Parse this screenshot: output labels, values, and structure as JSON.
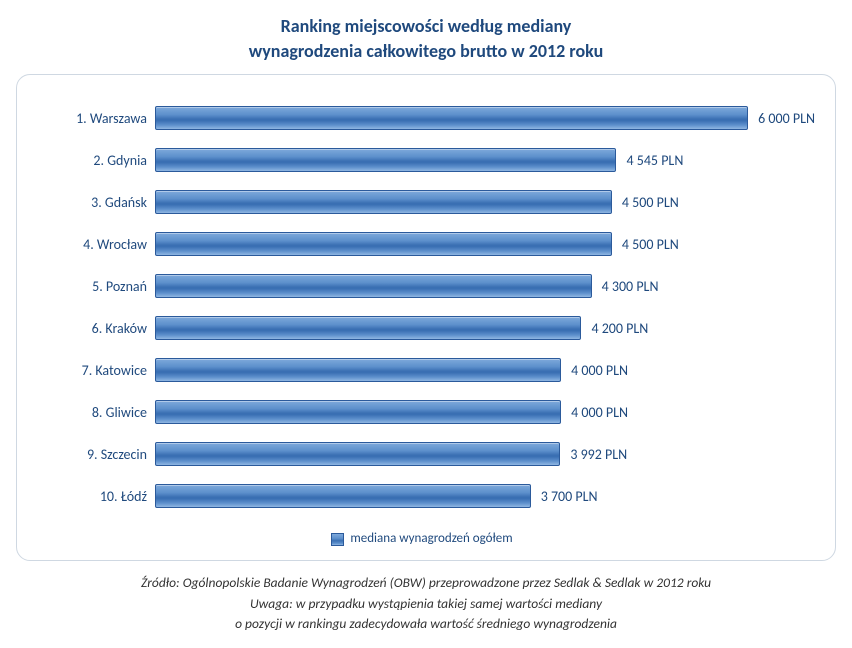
{
  "chart": {
    "type": "bar-horizontal",
    "title_lines": [
      "Ranking miejscowości według mediany",
      "wynagrodzenia całkowitego brutto w 2012 roku"
    ],
    "title_color": "#1f497d",
    "title_fontsize": 18,
    "value_max": 6500,
    "label_color": "#1f497d",
    "label_fontsize": 14,
    "value_suffix": " PLN",
    "bar_gradient": [
      "#7ea9db",
      "#5d90cc",
      "#3a6fb3",
      "#3a6fb3",
      "#5d90cc",
      "#8fb6e2"
    ],
    "bar_border_color": "#2b5a9b",
    "box_border_color": "#cfd8e2",
    "box_border_radius": 14,
    "background_color": "#ffffff",
    "rows": [
      {
        "label": "1. Warszawa",
        "value": 6000,
        "display": "6 000 PLN"
      },
      {
        "label": "2. Gdynia",
        "value": 4545,
        "display": "4 545 PLN"
      },
      {
        "label": "3. Gdańsk",
        "value": 4500,
        "display": "4 500 PLN"
      },
      {
        "label": "4. Wrocław",
        "value": 4500,
        "display": "4 500 PLN"
      },
      {
        "label": "5. Poznań",
        "value": 4300,
        "display": "4 300 PLN"
      },
      {
        "label": "6. Kraków",
        "value": 4200,
        "display": "4 200 PLN"
      },
      {
        "label": "7. Katowice",
        "value": 4000,
        "display": "4 000 PLN"
      },
      {
        "label": "8. Gliwice",
        "value": 4000,
        "display": "4 000 PLN"
      },
      {
        "label": "9. Szczecin",
        "value": 3992,
        "display": "3 992 PLN"
      },
      {
        "label": "10. Łódź",
        "value": 3700,
        "display": "3 700 PLN"
      }
    ],
    "legend_label": "mediana wynagrodzeń ogółem"
  },
  "footer": {
    "lines": [
      "Źródło: Ogólnopolskie Badanie Wynagrodzeń (OBW) przeprowadzone przez Sedlak & Sedlak w 2012 roku",
      "Uwaga: w przypadku wystąpienia takiej samej wartości mediany",
      "o pozycji w rankingu zadecydowała wartość średniego wynagrodzenia"
    ],
    "font_italic": true,
    "fontsize": 13.5,
    "color": "#333333"
  }
}
